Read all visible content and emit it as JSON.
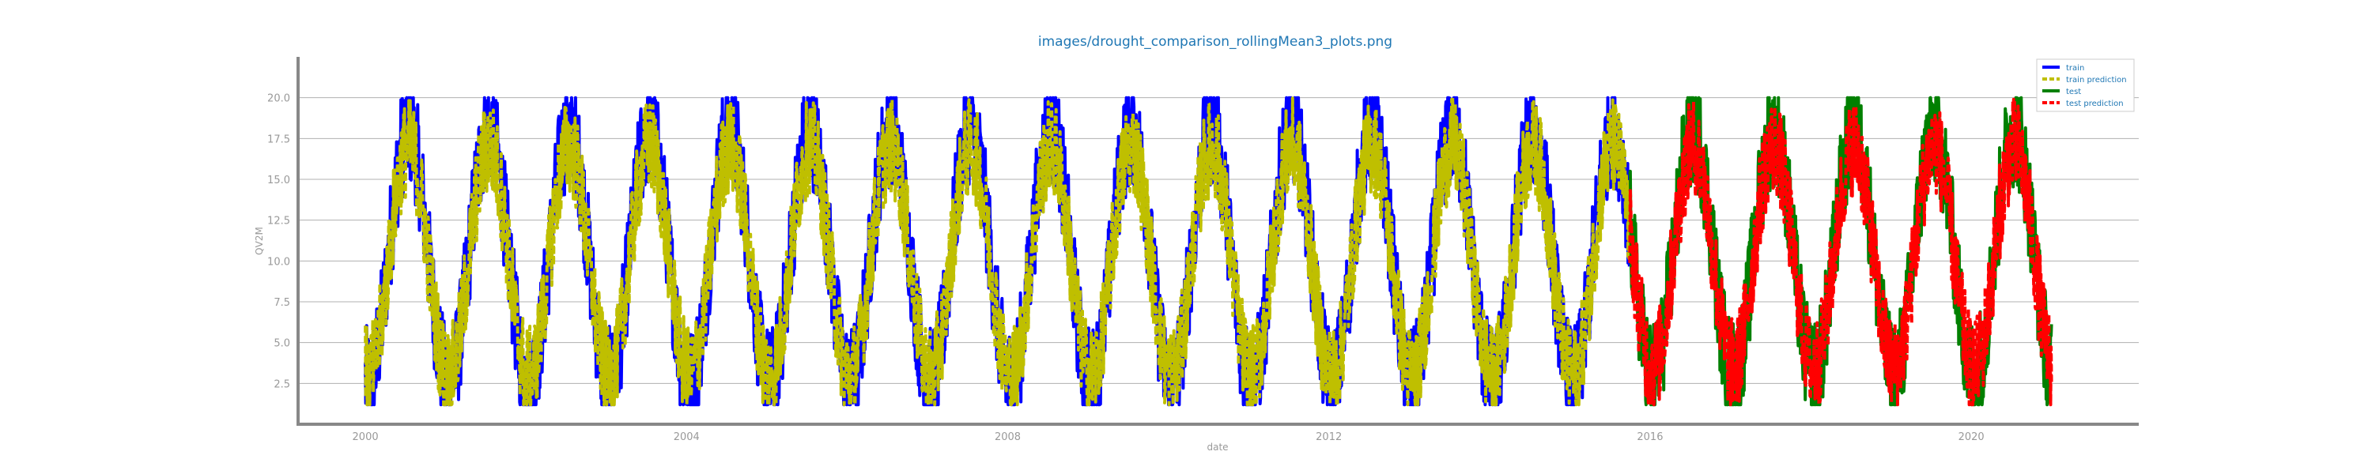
{
  "chart_data": {
    "type": "line",
    "title": "images/drought_comparison_rollingMean3_plots.png",
    "xlabel": "date",
    "ylabel": "QV2M",
    "xlim": [
      "1999-03-01",
      "2022-02-01"
    ],
    "ylim": [
      0,
      22.5
    ],
    "x_ticks": [
      "2000",
      "2004",
      "2008",
      "2012",
      "2016",
      "2020"
    ],
    "y_ticks": [
      "2.5",
      "5.0",
      "7.5",
      "10.0",
      "12.5",
      "15.0",
      "17.5",
      "20.0"
    ],
    "grid": "horizontal",
    "legend_position": "top-right",
    "series": [
      {
        "name": "train",
        "color": "#0000ff",
        "style": "solid",
        "period": [
          "2000-01-01",
          "2015-09-30"
        ],
        "seasonal_min": 2.5,
        "seasonal_max": 18.0,
        "noise": 3.5
      },
      {
        "name": "train prediction",
        "color": "#bfbf00",
        "style": "dashed",
        "period": [
          "2000-01-01",
          "2015-09-30"
        ],
        "seasonal_min": 3.0,
        "seasonal_max": 17.0,
        "noise": 3.0
      },
      {
        "name": "test",
        "color": "#008000",
        "style": "solid",
        "period": [
          "2015-10-01",
          "2020-12-31"
        ],
        "seasonal_min": 3.0,
        "seasonal_max": 18.0,
        "noise": 3.5
      },
      {
        "name": "test prediction",
        "color": "#ff0000",
        "style": "dashed",
        "period": [
          "2015-10-01",
          "2020-12-31"
        ],
        "seasonal_min": 3.5,
        "seasonal_max": 17.0,
        "noise": 3.0
      }
    ]
  }
}
